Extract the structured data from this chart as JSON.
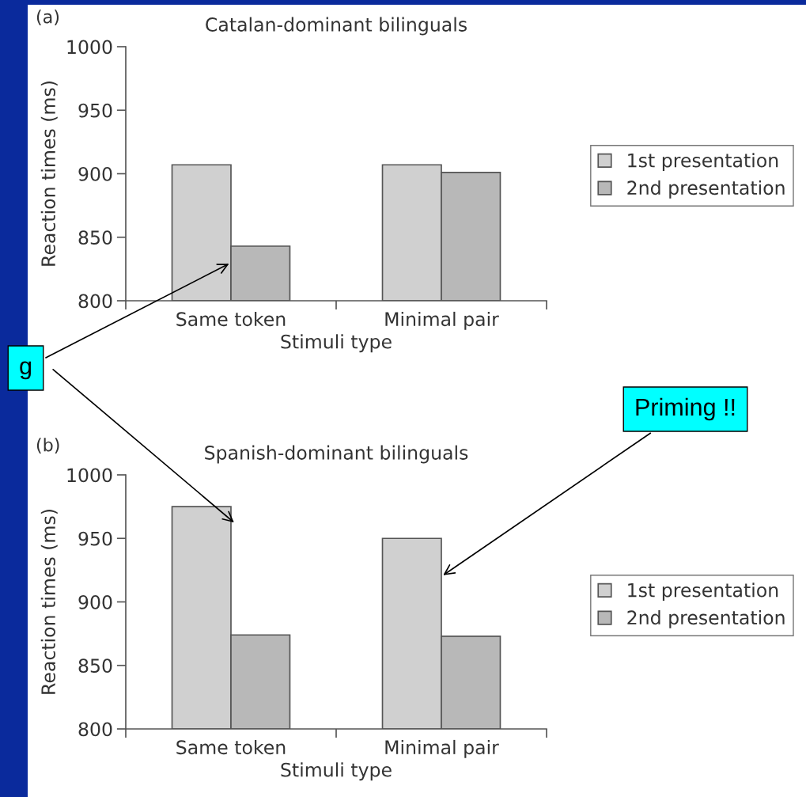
{
  "chart_data": [
    {
      "type": "bar",
      "title": "Catalan-dominant bilinguals",
      "subtitle": "(a)",
      "xlabel": "Stimuli type",
      "ylabel": "Reaction times (ms)",
      "categories": [
        "Same token",
        "Minimal pair"
      ],
      "series": [
        {
          "name": "1st presentation",
          "color": "#d0d0d0",
          "values": [
            907,
            907
          ]
        },
        {
          "name": "2nd presentation",
          "color": "#b8b8b8",
          "values": [
            843,
            901
          ]
        }
      ],
      "ylim": [
        800,
        1000
      ],
      "yticks": [
        800,
        850,
        900,
        950,
        1000
      ],
      "grid": false,
      "legend": "right",
      "annotations": [
        {
          "text": "g",
          "x": "Same token",
          "y": 830
        }
      ]
    },
    {
      "type": "bar",
      "title": "Spanish-dominant bilinguals",
      "subtitle": "(b)",
      "xlabel": "Stimuli type",
      "ylabel": "Reaction times (ms)",
      "categories": [
        "Same token",
        "Minimal pair"
      ],
      "series": [
        {
          "name": "1st presentation",
          "color": "#d0d0d0",
          "values": [
            975,
            950
          ]
        },
        {
          "name": "2nd presentation",
          "color": "#b8b8b8",
          "values": [
            874,
            873
          ]
        }
      ],
      "ylim": [
        800,
        1000
      ],
      "yticks": [
        800,
        850,
        900,
        950,
        1000
      ],
      "grid": false,
      "legend": "right",
      "annotations": [
        {
          "text": "Priming !!",
          "x": "Minimal pair",
          "y": 920
        }
      ]
    }
  ]
}
